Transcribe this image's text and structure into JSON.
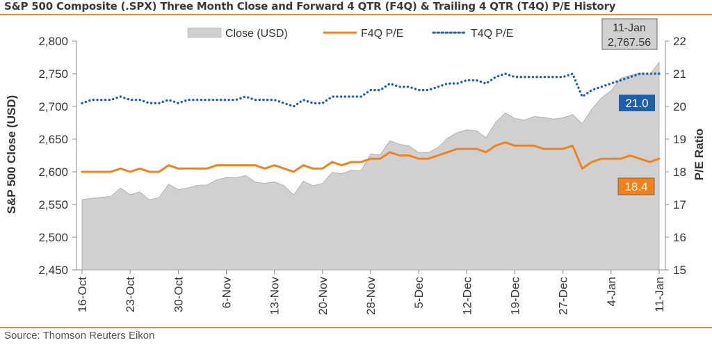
{
  "header": {
    "title": "S&P 500 Composite (.SPX) Three Month Close and Forward 4 QTR (F4Q) & Trailing 4 QTR (T4Q) P/E History",
    "source": "Source: Thomson Reuters Eikon"
  },
  "chart_data": {
    "type": "area",
    "xlabel": "",
    "ylabel": "S&P 500 Close (USD)",
    "y2label": "P/E Ratio",
    "ylim": [
      2450,
      2800
    ],
    "y2lim": [
      15,
      22
    ],
    "yticks": [
      "2,450",
      "2,500",
      "2,550",
      "2,600",
      "2,650",
      "2,700",
      "2,750",
      "2,800"
    ],
    "y2ticks": [
      "15",
      "16",
      "17",
      "18",
      "19",
      "20",
      "21",
      "22"
    ],
    "xticks": [
      "16-Oct",
      "23-Oct",
      "30-Oct",
      "6-Nov",
      "13-Nov",
      "20-Nov",
      "28-Nov",
      "5-Dec",
      "12-Dec",
      "19-Dec",
      "27-Dec",
      "4-Jan",
      "11-Jan"
    ],
    "x": [
      "16-Oct",
      "17-Oct",
      "18-Oct",
      "19-Oct",
      "20-Oct",
      "23-Oct",
      "24-Oct",
      "25-Oct",
      "26-Oct",
      "27-Oct",
      "30-Oct",
      "31-Oct",
      "1-Nov",
      "2-Nov",
      "3-Nov",
      "6-Nov",
      "7-Nov",
      "8-Nov",
      "9-Nov",
      "10-Nov",
      "13-Nov",
      "14-Nov",
      "15-Nov",
      "16-Nov",
      "17-Nov",
      "20-Nov",
      "21-Nov",
      "22-Nov",
      "24-Nov",
      "27-Nov",
      "28-Nov",
      "29-Nov",
      "30-Nov",
      "1-Dec",
      "4-Dec",
      "5-Dec",
      "6-Dec",
      "7-Dec",
      "8-Dec",
      "11-Dec",
      "12-Dec",
      "13-Dec",
      "14-Dec",
      "15-Dec",
      "18-Dec",
      "19-Dec",
      "20-Dec",
      "21-Dec",
      "22-Dec",
      "26-Dec",
      "27-Dec",
      "28-Dec",
      "29-Dec",
      "2-Jan",
      "3-Jan",
      "4-Jan",
      "5-Jan",
      "8-Jan",
      "9-Jan",
      "10-Jan",
      "11-Jan"
    ],
    "series": [
      {
        "name": "Close (USD)",
        "axis": "left",
        "type": "area",
        "color": "#d0d0d0",
        "values": [
          2557.64,
          2559.36,
          2561.26,
          2562.1,
          2575.21,
          2564.98,
          2569.13,
          2557.15,
          2560.4,
          2581.07,
          2572.83,
          2575.26,
          2579.36,
          2579.85,
          2587.84,
          2591.13,
          2590.64,
          2594.38,
          2584.62,
          2582.3,
          2584.84,
          2578.87,
          2564.62,
          2585.64,
          2578.85,
          2582.14,
          2599.03,
          2597.08,
          2602.42,
          2601.42,
          2627.04,
          2626.07,
          2647.58,
          2642.22,
          2639.44,
          2629.57,
          2629.27,
          2636.98,
          2651.5,
          2659.99,
          2664.11,
          2662.85,
          2652.01,
          2675.81,
          2690.16,
          2681.47,
          2679.25,
          2684.57,
          2683.34,
          2680.5,
          2682.62,
          2687.54,
          2673.61,
          2695.81,
          2713.06,
          2723.99,
          2743.15,
          2747.71,
          2751.29,
          2748.23,
          2767.56
        ]
      },
      {
        "name": "F4Q P/E",
        "axis": "right",
        "type": "line",
        "color": "#f0821e",
        "values": [
          18.0,
          18.0,
          18.0,
          18.0,
          18.1,
          18.0,
          18.1,
          18.0,
          18.0,
          18.2,
          18.1,
          18.1,
          18.1,
          18.1,
          18.2,
          18.2,
          18.2,
          18.2,
          18.2,
          18.1,
          18.2,
          18.1,
          18.0,
          18.2,
          18.1,
          18.1,
          18.3,
          18.2,
          18.3,
          18.3,
          18.4,
          18.4,
          18.6,
          18.5,
          18.5,
          18.4,
          18.4,
          18.5,
          18.6,
          18.7,
          18.7,
          18.7,
          18.6,
          18.8,
          18.9,
          18.8,
          18.8,
          18.8,
          18.7,
          18.7,
          18.7,
          18.8,
          18.1,
          18.3,
          18.4,
          18.4,
          18.4,
          18.5,
          18.4,
          18.3,
          18.4
        ]
      },
      {
        "name": "T4Q P/E",
        "axis": "right",
        "type": "line",
        "dash": "dotted",
        "color": "#1f5fa8",
        "values": [
          20.1,
          20.2,
          20.2,
          20.2,
          20.3,
          20.2,
          20.2,
          20.1,
          20.1,
          20.2,
          20.1,
          20.2,
          20.2,
          20.2,
          20.2,
          20.2,
          20.2,
          20.3,
          20.2,
          20.2,
          20.2,
          20.1,
          20.0,
          20.2,
          20.1,
          20.1,
          20.3,
          20.3,
          20.3,
          20.3,
          20.5,
          20.5,
          20.7,
          20.6,
          20.6,
          20.5,
          20.5,
          20.6,
          20.7,
          20.7,
          20.8,
          20.8,
          20.7,
          20.9,
          21.0,
          20.9,
          20.9,
          20.9,
          20.9,
          20.9,
          20.9,
          21.0,
          20.3,
          20.5,
          20.6,
          20.7,
          20.8,
          20.9,
          21.0,
          21.0,
          21.0
        ]
      }
    ],
    "annotations": {
      "close_date": "11-Jan",
      "close_value": "2,767.56",
      "t4q_label": "21.0",
      "f4q_label": "18.4",
      "t4q_color": "#1f5fa8",
      "f4q_color": "#f0821e"
    },
    "legend": {
      "placement": "top",
      "items": [
        {
          "label": "Close (USD)",
          "style": "area",
          "color": "#cfcfcf"
        },
        {
          "label": "F4Q P/E",
          "style": "line",
          "color": "#f0821e"
        },
        {
          "label": "T4Q P/E",
          "style": "dotted",
          "color": "#1f5fa8"
        }
      ]
    },
    "grid": false
  }
}
